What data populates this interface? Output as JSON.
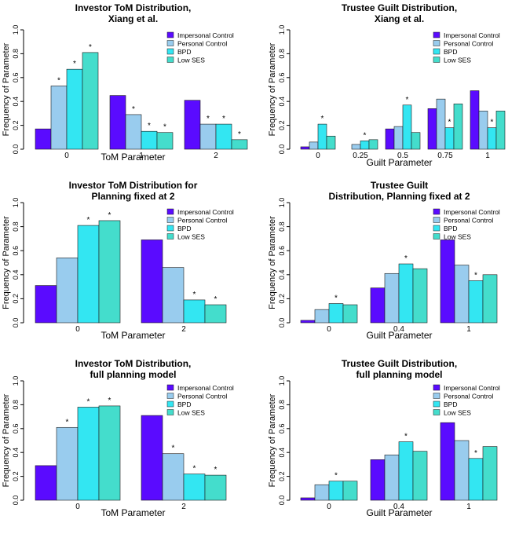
{
  "colors": {
    "series": [
      "#5a0bff",
      "#99ccee",
      "#33e6f2",
      "#44ddcc"
    ],
    "axis": "#000000"
  },
  "legend_labels": [
    "Impersonal Control",
    "Personal Control",
    "BPD",
    "Low SES"
  ],
  "chart_data": [
    {
      "type": "bar",
      "title": [
        "Investor ToM Distribution,",
        "Xiang et al."
      ],
      "xlabel": "ToM Parameter",
      "ylabel": "Frequency of Parameter",
      "ylim": [
        0,
        1
      ],
      "yticks": [
        "0.0",
        "0.2",
        "0.4",
        "0.6",
        "0.8",
        "1.0"
      ],
      "legend": "top-right",
      "categories": [
        "0",
        "1",
        "2"
      ],
      "series": [
        {
          "name": "Impersonal Control",
          "values": [
            0.17,
            0.45,
            0.41
          ]
        },
        {
          "name": "Personal Control",
          "values": [
            0.53,
            0.29,
            0.21
          ]
        },
        {
          "name": "BPD",
          "values": [
            0.67,
            0.15,
            0.21
          ]
        },
        {
          "name": "Low SES",
          "values": [
            0.81,
            0.14,
            0.08
          ]
        }
      ],
      "stars": [
        [
          false,
          true,
          true,
          true
        ],
        [
          false,
          true,
          true,
          true
        ],
        [
          false,
          true,
          true,
          true
        ]
      ]
    },
    {
      "type": "bar",
      "title": [
        "Trustee Guilt Distribution,",
        "Xiang et al."
      ],
      "xlabel": "Guilt Parameter",
      "ylabel": "Frequency of Parameter",
      "ylim": [
        0,
        1
      ],
      "yticks": [
        "0.0",
        "0.2",
        "0.4",
        "0.6",
        "0.8",
        "1.0"
      ],
      "legend": "top-right",
      "categories": [
        "0",
        "0.25",
        "0.5",
        "0.75",
        "1"
      ],
      "series": [
        {
          "name": "Impersonal Control",
          "values": [
            0.02,
            0.0,
            0.17,
            0.34,
            0.49
          ]
        },
        {
          "name": "Personal Control",
          "values": [
            0.06,
            0.04,
            0.19,
            0.42,
            0.32
          ]
        },
        {
          "name": "BPD",
          "values": [
            0.21,
            0.07,
            0.37,
            0.18,
            0.18
          ]
        },
        {
          "name": "Low SES",
          "values": [
            0.11,
            0.08,
            0.14,
            0.38,
            0.32
          ]
        }
      ],
      "stars": [
        [
          false,
          false,
          true,
          false
        ],
        [
          false,
          false,
          true,
          false
        ],
        [
          false,
          false,
          true,
          false
        ],
        [
          false,
          false,
          true,
          false
        ],
        [
          false,
          false,
          true,
          false
        ]
      ]
    },
    {
      "type": "bar",
      "title": [
        "Investor ToM Distribution for",
        "Planning fixed at 2"
      ],
      "xlabel": "ToM Parameter",
      "ylabel": "Frequency of Parameter",
      "ylim": [
        0,
        1
      ],
      "yticks": [
        "0.0",
        "0.2",
        "0.4",
        "0.6",
        "0.8",
        "1.0"
      ],
      "legend": "top-right",
      "categories": [
        "0",
        "2"
      ],
      "series": [
        {
          "name": "Impersonal Control",
          "values": [
            0.31,
            0.69
          ]
        },
        {
          "name": "Personal Control",
          "values": [
            0.54,
            0.46
          ]
        },
        {
          "name": "BPD",
          "values": [
            0.81,
            0.19
          ]
        },
        {
          "name": "Low SES",
          "values": [
            0.85,
            0.15
          ]
        }
      ],
      "stars": [
        [
          false,
          false,
          true,
          true
        ],
        [
          false,
          false,
          true,
          true
        ]
      ]
    },
    {
      "type": "bar",
      "title": [
        "Trustee Guilt",
        "Distribution, Planning fixed at 2"
      ],
      "xlabel": "Guilt Parameter",
      "ylabel": "Frequency of Parameter",
      "ylim": [
        0,
        1
      ],
      "yticks": [
        "0.0",
        "0.2",
        "0.4",
        "0.6",
        "0.8",
        "1.0"
      ],
      "legend": "top-right",
      "categories": [
        "0",
        "0.4",
        "1"
      ],
      "series": [
        {
          "name": "Impersonal Control",
          "values": [
            0.02,
            0.29,
            0.69
          ]
        },
        {
          "name": "Personal Control",
          "values": [
            0.11,
            0.41,
            0.48
          ]
        },
        {
          "name": "BPD",
          "values": [
            0.16,
            0.49,
            0.35
          ]
        },
        {
          "name": "Low SES",
          "values": [
            0.15,
            0.45,
            0.4
          ]
        }
      ],
      "stars": [
        [
          false,
          false,
          true,
          false
        ],
        [
          false,
          false,
          true,
          false
        ],
        [
          false,
          false,
          true,
          false
        ]
      ]
    },
    {
      "type": "bar",
      "title": [
        "Investor ToM Distribution,",
        "full planning model"
      ],
      "xlabel": "ToM Parameter",
      "ylabel": "Frequency of Parameter",
      "ylim": [
        0,
        1
      ],
      "yticks": [
        "0.0",
        "0.2",
        "0.4",
        "0.6",
        "0.8",
        "1.0"
      ],
      "legend": "top-right",
      "categories": [
        "0",
        "2"
      ],
      "series": [
        {
          "name": "Impersonal Control",
          "values": [
            0.29,
            0.71
          ]
        },
        {
          "name": "Personal Control",
          "values": [
            0.61,
            0.39
          ]
        },
        {
          "name": "BPD",
          "values": [
            0.78,
            0.22
          ]
        },
        {
          "name": "Low SES",
          "values": [
            0.79,
            0.21
          ]
        }
      ],
      "stars": [
        [
          false,
          true,
          true,
          true
        ],
        [
          false,
          true,
          true,
          true
        ]
      ]
    },
    {
      "type": "bar",
      "title": [
        "Trustee Guilt Distribution,",
        "full planning model"
      ],
      "xlabel": "Guilt Parameter",
      "ylabel": "Frequency of Parameter",
      "ylim": [
        0,
        1
      ],
      "yticks": [
        "0.0",
        "0.2",
        "0.4",
        "0.6",
        "0.8",
        "1.0"
      ],
      "legend": "top-right",
      "categories": [
        "0",
        "0.4",
        "1"
      ],
      "series": [
        {
          "name": "Impersonal Control",
          "values": [
            0.02,
            0.34,
            0.65
          ]
        },
        {
          "name": "Personal Control",
          "values": [
            0.13,
            0.38,
            0.5
          ]
        },
        {
          "name": "BPD",
          "values": [
            0.16,
            0.49,
            0.35
          ]
        },
        {
          "name": "Low SES",
          "values": [
            0.16,
            0.41,
            0.45
          ]
        }
      ],
      "stars": [
        [
          false,
          false,
          true,
          false
        ],
        [
          false,
          false,
          true,
          false
        ],
        [
          false,
          false,
          true,
          false
        ]
      ]
    }
  ]
}
